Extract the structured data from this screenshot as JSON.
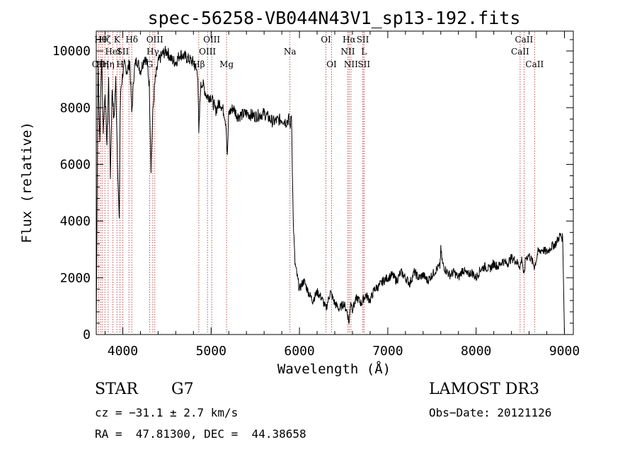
{
  "chart_data": {
    "type": "line",
    "title": "spec-56258-VB044N43V1_sp13-192.fits",
    "xlabel": "Wavelength (Å)",
    "ylabel": "Flux (relative)",
    "xlim": [
      3700,
      9100
    ],
    "ylim": [
      0,
      10700
    ],
    "xticks": [
      4000,
      5000,
      6000,
      7000,
      8000,
      9000
    ],
    "xtick_labels": [
      "4000",
      "5000",
      "6000",
      "7000",
      "8000",
      "9000"
    ],
    "yticks": [
      0,
      2000,
      4000,
      6000,
      8000,
      10000
    ],
    "ytick_labels": [
      "0",
      "2000",
      "4000",
      "6000",
      "8000",
      "10000"
    ],
    "grid": false,
    "series": [
      {
        "x": [
          3700,
          3720,
          3740,
          3760,
          3780,
          3800,
          3820,
          3840,
          3860,
          3880,
          3900,
          3920,
          3940,
          3960,
          3970,
          3980,
          4000,
          4020,
          4050,
          4080,
          4102,
          4130,
          4160,
          4200,
          4250,
          4280,
          4300,
          4320,
          4340,
          4360,
          4400,
          4450,
          4500,
          4550,
          4600,
          4650,
          4700,
          4750,
          4800,
          4850,
          4861,
          4880,
          4900,
          4950,
          5000,
          5050,
          5100,
          5150,
          5170,
          5183,
          5200,
          5250,
          5300,
          5400,
          5500,
          5600,
          5700,
          5800,
          5850,
          5880,
          5893,
          5910,
          5930,
          5950,
          6000,
          6050,
          6100,
          6150,
          6200,
          6250,
          6300,
          6350,
          6400,
          6450,
          6500,
          6540,
          6563,
          6580,
          6600,
          6650,
          6700,
          6750,
          6800,
          6850,
          6900,
          6950,
          7000,
          7050,
          7100,
          7150,
          7200,
          7250,
          7300,
          7350,
          7400,
          7450,
          7500,
          7550,
          7590,
          7600,
          7620,
          7650,
          7700,
          7750,
          7800,
          7850,
          7900,
          7950,
          8000,
          8050,
          8100,
          8150,
          8200,
          8250,
          8300,
          8350,
          8400,
          8450,
          8498,
          8520,
          8542,
          8560,
          8600,
          8662,
          8700,
          8750,
          8800,
          8850,
          8900,
          8950,
          8980,
          9000
        ],
        "y": [
          200,
          9500,
          6800,
          9800,
          7200,
          8600,
          6700,
          9000,
          5600,
          8700,
          7500,
          9000,
          6200,
          3900,
          7800,
          8700,
          9200,
          9500,
          9300,
          9600,
          7800,
          9400,
          9700,
          9300,
          9800,
          9500,
          8800,
          5900,
          7800,
          8800,
          9600,
          9900,
          10000,
          9700,
          9600,
          9900,
          9800,
          9700,
          9600,
          9200,
          7000,
          8700,
          8900,
          8400,
          8400,
          7900,
          8200,
          7800,
          7400,
          6200,
          7800,
          8000,
          7700,
          7800,
          7700,
          7800,
          7500,
          7600,
          7500,
          7600,
          7300,
          7800,
          4000,
          2500,
          1600,
          1900,
          1500,
          1200,
          1500,
          1300,
          900,
          1500,
          1100,
          900,
          1100,
          800,
          400,
          1200,
          900,
          1300,
          1100,
          1400,
          1200,
          1600,
          1700,
          1900,
          2000,
          2100,
          1900,
          2200,
          2000,
          1800,
          2200,
          2000,
          2100,
          1900,
          2100,
          2300,
          2400,
          3000,
          2500,
          2300,
          2100,
          2200,
          2000,
          2300,
          2100,
          2200,
          2000,
          2300,
          2400,
          2300,
          2500,
          2400,
          2600,
          2500,
          2700,
          2600,
          2400,
          2700,
          2000,
          2700,
          2800,
          2400,
          2900,
          3000,
          2900,
          3100,
          3200,
          3500,
          3400,
          0
        ]
      }
    ],
    "lines": [
      {
        "w": 3727,
        "label": "OII",
        "row": 2
      },
      {
        "w": 3750,
        "label": "Hθ",
        "row": 0
      },
      {
        "w": 3770,
        "label": "Hη",
        "row": 2
      },
      {
        "w": 3798,
        "label": "Hζ",
        "row": 0
      },
      {
        "w": 3835,
        "label": "Hη",
        "row": 2
      },
      {
        "w": 3889,
        "label": "HeI",
        "row": 1
      },
      {
        "w": 3934,
        "label": "K",
        "row": 0
      },
      {
        "w": 3969,
        "label": "H",
        "row": 2
      },
      {
        "w": 4000,
        "label": "SII",
        "row": 1
      },
      {
        "w": 4102,
        "label": "Hδ",
        "row": 0
      },
      {
        "w": 4070,
        "label": "I",
        "row": 2
      },
      {
        "w": 4304,
        "label": "G",
        "row": 2
      },
      {
        "w": 4340,
        "label": "Hγ",
        "row": 1
      },
      {
        "w": 4363,
        "label": "OIII",
        "row": 0
      },
      {
        "w": 4861,
        "label": "Hβ",
        "row": 2
      },
      {
        "w": 4959,
        "label": "OIII",
        "row": 1
      },
      {
        "w": 5007,
        "label": "OIII",
        "row": 0
      },
      {
        "w": 5175,
        "label": "Mg",
        "row": 2
      },
      {
        "w": 5893,
        "label": "Na",
        "row": 1
      },
      {
        "w": 6300,
        "label": "OI",
        "row": 0
      },
      {
        "w": 6364,
        "label": "OI",
        "row": 2
      },
      {
        "w": 6548,
        "label": "NII",
        "row": 1
      },
      {
        "w": 6563,
        "label": "Hα",
        "row": 0
      },
      {
        "w": 6583,
        "label": "NII",
        "row": 2
      },
      {
        "w": 6717,
        "label": "SII",
        "row": 0
      },
      {
        "w": 6731,
        "label": "SII",
        "row": 2
      },
      {
        "w": 6730,
        "label": "L",
        "row": 1
      },
      {
        "w": 8498,
        "label": "CaII",
        "row": 1
      },
      {
        "w": 8542,
        "label": "CaII",
        "row": 0
      },
      {
        "w": 8662,
        "label": "CaII",
        "row": 2
      }
    ]
  },
  "info": {
    "class": "STAR",
    "subclass": "G7",
    "survey": "LAMOST DR3",
    "cz": "cz = −31.1 ± 2.7 km/s",
    "obsdate": "Obs−Date: 20121126",
    "radec": "RA =  47.81300, DEC =  44.38658"
  }
}
